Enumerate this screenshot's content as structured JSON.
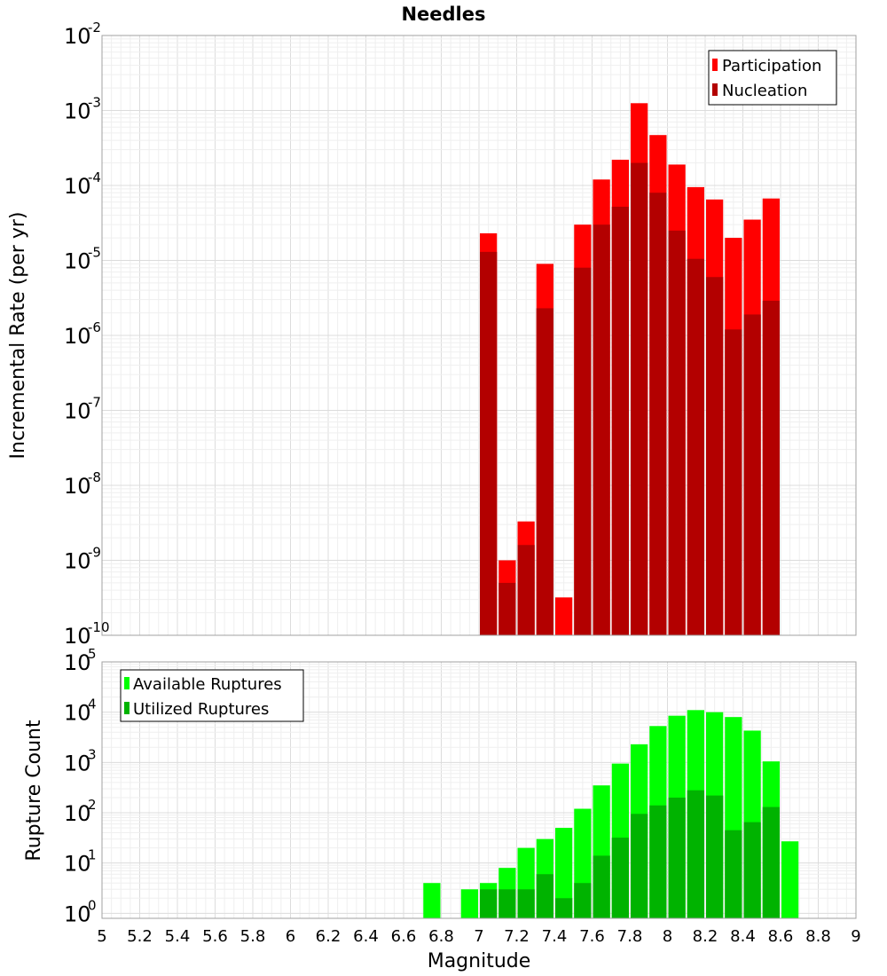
{
  "chart_data": {
    "title": "Needles",
    "xlabel": "Magnitude",
    "xlim": [
      5,
      9
    ],
    "xticks": [
      "5",
      "5.2",
      "5.4",
      "5.6",
      "5.8",
      "6",
      "6.2",
      "6.4",
      "6.6",
      "6.8",
      "7",
      "7.2",
      "7.4",
      "7.6",
      "7.8",
      "8",
      "8.2",
      "8.4",
      "8.6",
      "8.8",
      "9"
    ],
    "grid": true,
    "panels": [
      {
        "type": "bar",
        "yscale": "log",
        "ylabel": "Incremental Rate (per yr)",
        "ylim_exponents": [
          -10,
          -2
        ],
        "ytick_labels": [
          {
            "base": "10",
            "exp": "-2"
          },
          {
            "base": "10",
            "exp": "-3"
          },
          {
            "base": "10",
            "exp": "-4"
          },
          {
            "base": "10",
            "exp": "-5"
          },
          {
            "base": "10",
            "exp": "-6"
          },
          {
            "base": "10",
            "exp": "-7"
          },
          {
            "base": "10",
            "exp": "-8"
          },
          {
            "base": "10",
            "exp": "-9"
          },
          {
            "base": "10",
            "exp": "-10"
          }
        ],
        "legend_position": "top-right",
        "x": [
          7.05,
          7.15,
          7.25,
          7.35,
          7.45,
          7.55,
          7.65,
          7.75,
          7.85,
          7.95,
          8.05,
          8.15,
          8.25,
          8.35,
          8.45,
          8.55
        ],
        "series": [
          {
            "name": "Participation",
            "color": "#ff0000",
            "values": [
              2.3e-05,
              1e-09,
              3.3e-09,
              9e-06,
              3.2e-10,
              3e-05,
              0.00012,
              0.00022,
              0.00125,
              0.00047,
              0.00019,
              9.5e-05,
              6.5e-05,
              2e-05,
              3.5e-05,
              6.7e-05
            ]
          },
          {
            "name": "Nucleation",
            "color": "#b30000",
            "values": [
              1.3e-05,
              5e-10,
              1.6e-09,
              2.3e-06,
              0,
              8e-06,
              3e-05,
              5.2e-05,
              0.0002,
              8e-05,
              2.5e-05,
              1.05e-05,
              6e-06,
              1.2e-06,
              1.9e-06,
              2.9e-06
            ]
          }
        ]
      },
      {
        "type": "bar",
        "yscale": "log",
        "ylabel": "Rupture Count",
        "ylim_exponents": [
          -0.1,
          5
        ],
        "ytick_labels": [
          {
            "base": "10",
            "exp": "5"
          },
          {
            "base": "10",
            "exp": "4"
          },
          {
            "base": "10",
            "exp": "3"
          },
          {
            "base": "10",
            "exp": "2"
          },
          {
            "base": "10",
            "exp": "1"
          },
          {
            "base": "10",
            "exp": "0"
          }
        ],
        "legend_position": "top-left",
        "x": [
          6.75,
          6.95,
          7.05,
          7.15,
          7.25,
          7.35,
          7.45,
          7.55,
          7.65,
          7.75,
          7.85,
          7.95,
          8.05,
          8.15,
          8.25,
          8.35,
          8.45,
          8.55,
          8.65
        ],
        "series": [
          {
            "name": "Available Ruptures",
            "color": "#00ff00",
            "values": [
              4,
              3,
              4,
              8,
              20,
              30,
              50,
              120,
              350,
              950,
              2300,
              5300,
              8500,
              11000,
              10000,
              8000,
              4300,
              1050,
              27
            ]
          },
          {
            "name": "Utilized Ruptures",
            "color": "#00b300",
            "values": [
              0,
              0,
              3,
              3,
              3,
              6,
              2,
              4,
              14,
              32,
              95,
              140,
              200,
              280,
              220,
              45,
              65,
              130,
              0
            ]
          }
        ]
      }
    ]
  }
}
